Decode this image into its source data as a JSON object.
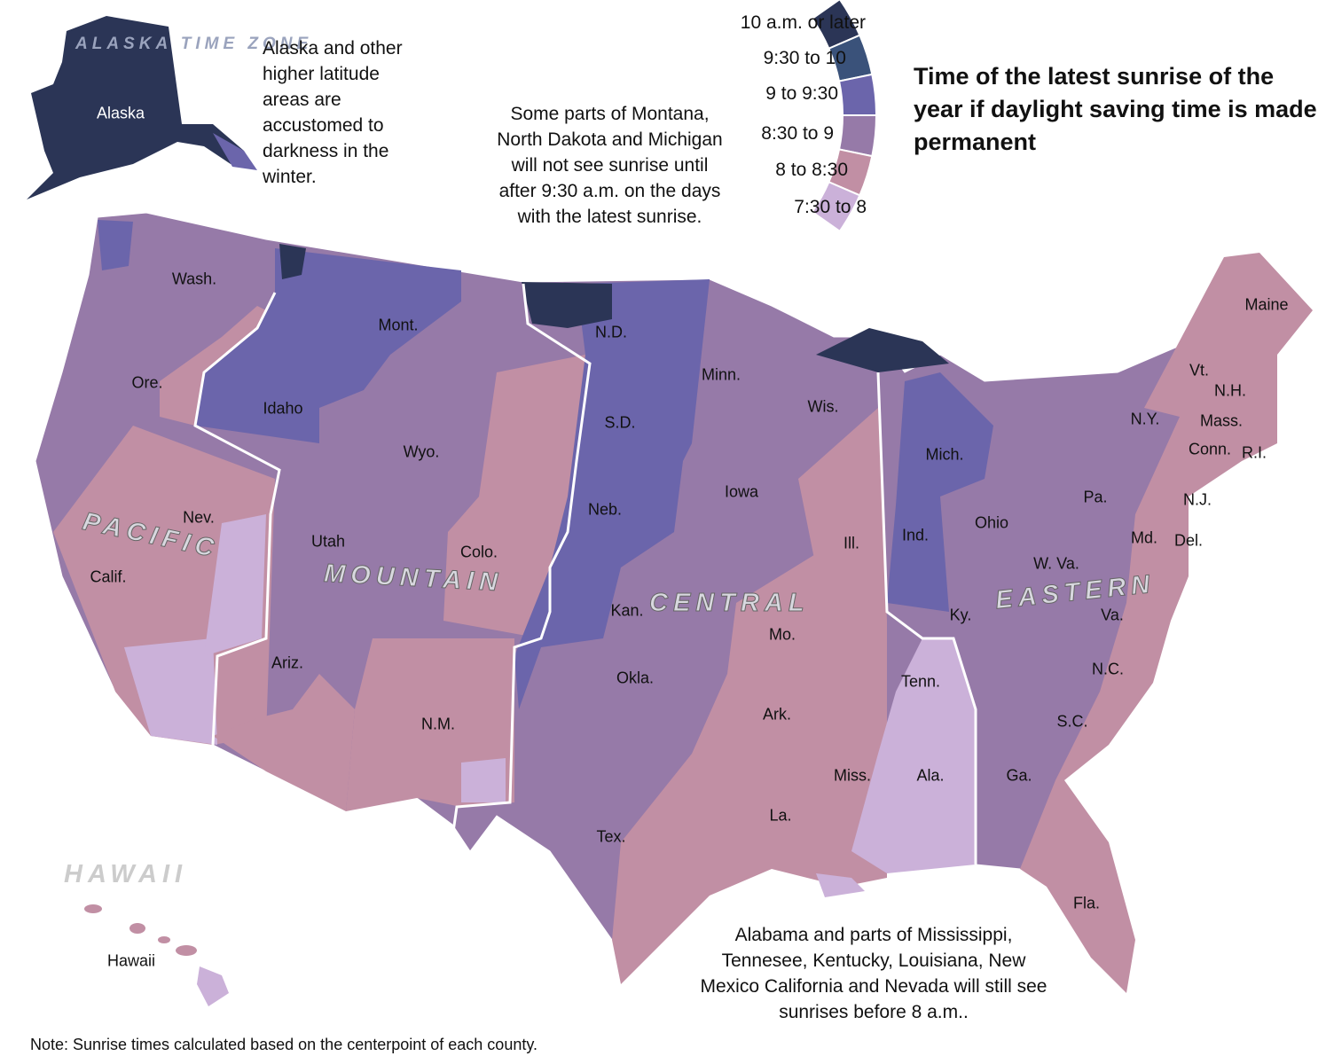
{
  "title": "Time of the latest sunrise of the year if daylight saving time is made permanent",
  "legend": {
    "items": [
      {
        "label": "10 a.m. or later",
        "color": "#2b3556"
      },
      {
        "label": "9:30 to 10",
        "color": "#3a527a"
      },
      {
        "label": "9 to 9:30",
        "color": "#6b65ab"
      },
      {
        "label": "8:30 to 9",
        "color": "#967aa8"
      },
      {
        "label": "8 to 8:30",
        "color": "#c18fa4"
      },
      {
        "label": "7:30 to 8",
        "color": "#cbb1d9"
      }
    ]
  },
  "annotations": {
    "alaska": "Alaska and other higher latitude areas are accustomed to darkness in the winter.",
    "montana": "Some parts of Montana, North Dakota and Michigan will not see sunrise until after 9:30 a.m. on the days with the latest sunrise.",
    "alabama": "Alabama and parts of Mississippi, Tennesee, Kentucky, Louisiana, New Mexico California and Nevada will still see sunrises before 8 a.m.."
  },
  "time_zones": {
    "alaska": "ALASKA TIME ZONE",
    "pacific": "PACIFIC",
    "mountain": "MOUNTAIN",
    "central": "CENTRAL",
    "eastern": "EASTERN",
    "hawaii": "HAWAII"
  },
  "states": [
    "Alaska",
    "Hawaii",
    "Wash.",
    "Ore.",
    "Calif.",
    "Nev.",
    "Idaho",
    "Mont.",
    "Wyo.",
    "Utah",
    "Colo.",
    "Ariz.",
    "N.M.",
    "N.D.",
    "S.D.",
    "Neb.",
    "Kan.",
    "Okla.",
    "Tex.",
    "Minn.",
    "Iowa",
    "Mo.",
    "Ark.",
    "La.",
    "Wis.",
    "Ill.",
    "Miss.",
    "Ala.",
    "Tenn.",
    "Ky.",
    "Ind.",
    "Mich.",
    "Ohio",
    "Ga.",
    "Fla.",
    "S.C.",
    "N.C.",
    "Va.",
    "W. Va.",
    "Pa.",
    "N.Y.",
    "Md.",
    "Del.",
    "N.J.",
    "Conn.",
    "R.I.",
    "Mass.",
    "Vt.",
    "N.H.",
    "Maine"
  ],
  "footnote": "Note: Sunrise times calculated based on the centerpoint of each county."
}
